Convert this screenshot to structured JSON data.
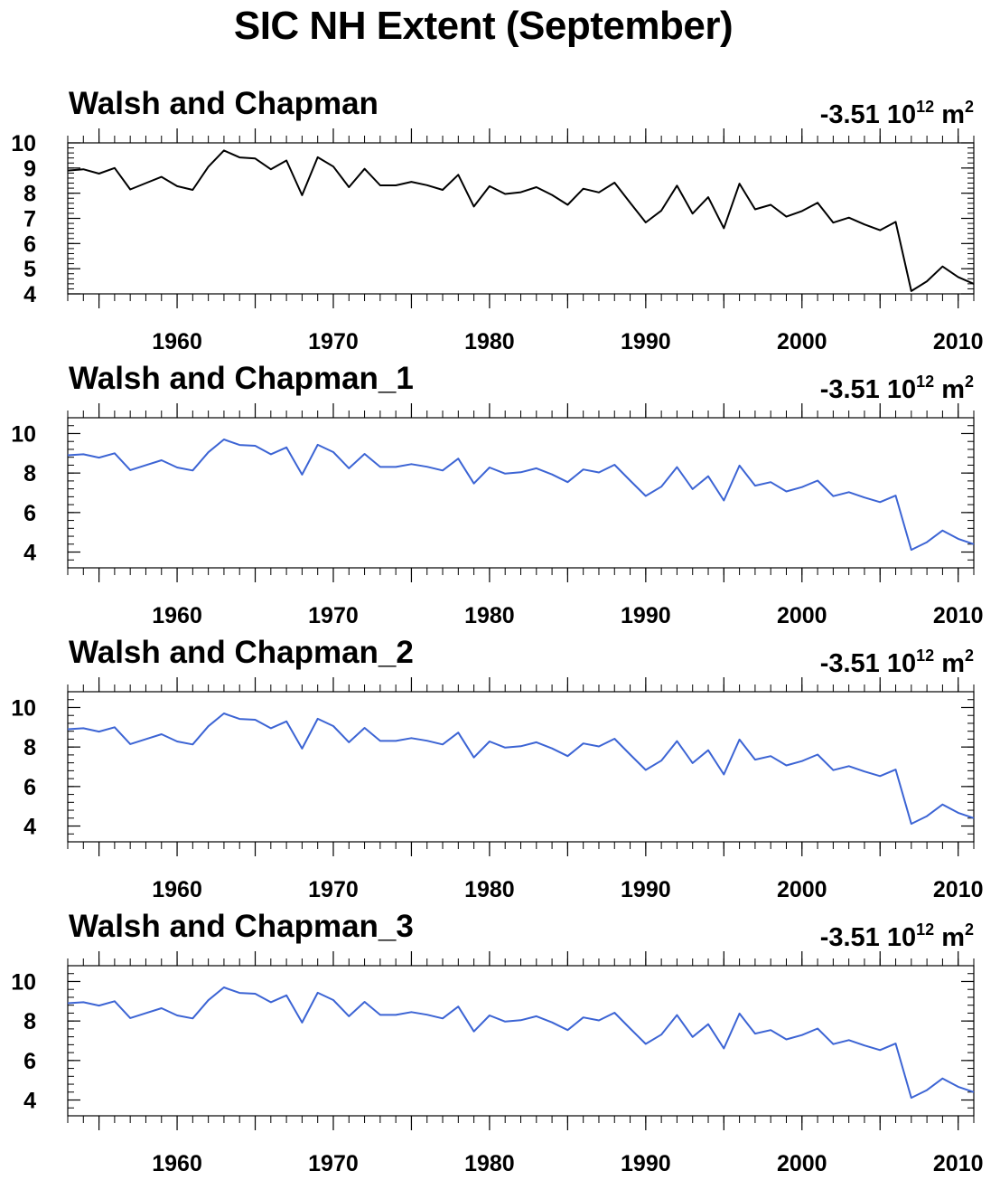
{
  "title": "SIC NH Extent (September)",
  "chart_data": [
    {
      "type": "line",
      "title": "Walsh and Chapman",
      "stat_value": "-3.51",
      "stat_unit_base": "10",
      "stat_unit_exp": "12",
      "stat_unit_rest": "m",
      "stat_unit_rest_exp": "2",
      "line_color": "#000000",
      "xlim": [
        1953,
        2011
      ],
      "ylim": [
        4,
        10
      ],
      "yticks": [
        4,
        5,
        6,
        7,
        8,
        9,
        10
      ],
      "xticks": [
        1960,
        1970,
        1980,
        1990,
        2000,
        2010
      ],
      "x": [
        1953,
        1954,
        1955,
        1956,
        1957,
        1958,
        1959,
        1960,
        1961,
        1962,
        1963,
        1964,
        1965,
        1966,
        1967,
        1968,
        1969,
        1970,
        1971,
        1972,
        1973,
        1974,
        1975,
        1976,
        1977,
        1978,
        1979,
        1980,
        1981,
        1982,
        1983,
        1984,
        1985,
        1986,
        1987,
        1988,
        1989,
        1990,
        1991,
        1992,
        1993,
        1994,
        1995,
        1996,
        1997,
        1998,
        1999,
        2000,
        2001,
        2002,
        2003,
        2004,
        2005,
        2006,
        2007,
        2008,
        2009,
        2010,
        2011
      ],
      "y": [
        8.9,
        8.95,
        8.78,
        9.0,
        8.15,
        8.4,
        8.65,
        8.28,
        8.13,
        9.05,
        9.7,
        9.42,
        9.38,
        8.95,
        9.3,
        7.92,
        9.43,
        9.06,
        8.24,
        8.97,
        8.31,
        8.31,
        8.45,
        8.32,
        8.13,
        8.73,
        7.47,
        8.28,
        7.97,
        8.04,
        8.24,
        7.93,
        7.54,
        8.18,
        8.03,
        8.42,
        7.62,
        6.84,
        7.31,
        8.3,
        7.19,
        7.84,
        6.61,
        8.38,
        7.36,
        7.54,
        7.07,
        7.29,
        7.62,
        6.83,
        7.03,
        6.76,
        6.53,
        6.86,
        4.11,
        4.5,
        5.09,
        4.67,
        4.4
      ]
    },
    {
      "type": "line",
      "title": "Walsh and Chapman_1",
      "stat_value": "-3.51",
      "stat_unit_base": "10",
      "stat_unit_exp": "12",
      "stat_unit_rest": "m",
      "stat_unit_rest_exp": "2",
      "line_color": "#3c64d4",
      "xlim": [
        1953,
        2011
      ],
      "ylim": [
        3.2,
        10.8
      ],
      "yticks": [
        4,
        6,
        8,
        10
      ],
      "xticks": [
        1960,
        1970,
        1980,
        1990,
        2000,
        2010
      ],
      "x": [
        1953,
        1954,
        1955,
        1956,
        1957,
        1958,
        1959,
        1960,
        1961,
        1962,
        1963,
        1964,
        1965,
        1966,
        1967,
        1968,
        1969,
        1970,
        1971,
        1972,
        1973,
        1974,
        1975,
        1976,
        1977,
        1978,
        1979,
        1980,
        1981,
        1982,
        1983,
        1984,
        1985,
        1986,
        1987,
        1988,
        1989,
        1990,
        1991,
        1992,
        1993,
        1994,
        1995,
        1996,
        1997,
        1998,
        1999,
        2000,
        2001,
        2002,
        2003,
        2004,
        2005,
        2006,
        2007,
        2008,
        2009,
        2010,
        2011
      ],
      "y": [
        8.9,
        8.95,
        8.78,
        9.0,
        8.15,
        8.4,
        8.65,
        8.28,
        8.13,
        9.05,
        9.7,
        9.42,
        9.38,
        8.95,
        9.3,
        7.92,
        9.43,
        9.06,
        8.24,
        8.97,
        8.31,
        8.31,
        8.45,
        8.32,
        8.13,
        8.73,
        7.47,
        8.28,
        7.97,
        8.04,
        8.24,
        7.93,
        7.54,
        8.18,
        8.03,
        8.42,
        7.62,
        6.84,
        7.31,
        8.3,
        7.19,
        7.84,
        6.61,
        8.38,
        7.36,
        7.54,
        7.07,
        7.29,
        7.62,
        6.83,
        7.03,
        6.76,
        6.53,
        6.86,
        4.11,
        4.5,
        5.09,
        4.67,
        4.4
      ]
    },
    {
      "type": "line",
      "title": "Walsh and Chapman_2",
      "stat_value": "-3.51",
      "stat_unit_base": "10",
      "stat_unit_exp": "12",
      "stat_unit_rest": "m",
      "stat_unit_rest_exp": "2",
      "line_color": "#3c64d4",
      "xlim": [
        1953,
        2011
      ],
      "ylim": [
        3.2,
        10.8
      ],
      "yticks": [
        4,
        6,
        8,
        10
      ],
      "xticks": [
        1960,
        1970,
        1980,
        1990,
        2000,
        2010
      ],
      "x": [
        1953,
        1954,
        1955,
        1956,
        1957,
        1958,
        1959,
        1960,
        1961,
        1962,
        1963,
        1964,
        1965,
        1966,
        1967,
        1968,
        1969,
        1970,
        1971,
        1972,
        1973,
        1974,
        1975,
        1976,
        1977,
        1978,
        1979,
        1980,
        1981,
        1982,
        1983,
        1984,
        1985,
        1986,
        1987,
        1988,
        1989,
        1990,
        1991,
        1992,
        1993,
        1994,
        1995,
        1996,
        1997,
        1998,
        1999,
        2000,
        2001,
        2002,
        2003,
        2004,
        2005,
        2006,
        2007,
        2008,
        2009,
        2010,
        2011
      ],
      "y": [
        8.9,
        8.95,
        8.78,
        9.0,
        8.15,
        8.4,
        8.65,
        8.28,
        8.13,
        9.05,
        9.7,
        9.42,
        9.38,
        8.95,
        9.3,
        7.92,
        9.43,
        9.06,
        8.24,
        8.97,
        8.31,
        8.31,
        8.45,
        8.32,
        8.13,
        8.73,
        7.47,
        8.28,
        7.97,
        8.04,
        8.24,
        7.93,
        7.54,
        8.18,
        8.03,
        8.42,
        7.62,
        6.84,
        7.31,
        8.3,
        7.19,
        7.84,
        6.61,
        8.38,
        7.36,
        7.54,
        7.07,
        7.29,
        7.62,
        6.83,
        7.03,
        6.76,
        6.53,
        6.86,
        4.11,
        4.5,
        5.09,
        4.67,
        4.4
      ]
    },
    {
      "type": "line",
      "title": "Walsh and Chapman_3",
      "stat_value": "-3.51",
      "stat_unit_base": "10",
      "stat_unit_exp": "12",
      "stat_unit_rest": "m",
      "stat_unit_rest_exp": "2",
      "line_color": "#3c64d4",
      "xlim": [
        1953,
        2011
      ],
      "ylim": [
        3.2,
        10.8
      ],
      "yticks": [
        4,
        6,
        8,
        10
      ],
      "xticks": [
        1960,
        1970,
        1980,
        1990,
        2000,
        2010
      ],
      "x": [
        1953,
        1954,
        1955,
        1956,
        1957,
        1958,
        1959,
        1960,
        1961,
        1962,
        1963,
        1964,
        1965,
        1966,
        1967,
        1968,
        1969,
        1970,
        1971,
        1972,
        1973,
        1974,
        1975,
        1976,
        1977,
        1978,
        1979,
        1980,
        1981,
        1982,
        1983,
        1984,
        1985,
        1986,
        1987,
        1988,
        1989,
        1990,
        1991,
        1992,
        1993,
        1994,
        1995,
        1996,
        1997,
        1998,
        1999,
        2000,
        2001,
        2002,
        2003,
        2004,
        2005,
        2006,
        2007,
        2008,
        2009,
        2010,
        2011
      ],
      "y": [
        8.9,
        8.95,
        8.78,
        9.0,
        8.15,
        8.4,
        8.65,
        8.28,
        8.13,
        9.05,
        9.7,
        9.42,
        9.38,
        8.95,
        9.3,
        7.92,
        9.43,
        9.06,
        8.24,
        8.97,
        8.31,
        8.31,
        8.45,
        8.32,
        8.13,
        8.73,
        7.47,
        8.28,
        7.97,
        8.04,
        8.24,
        7.93,
        7.54,
        8.18,
        8.03,
        8.42,
        7.62,
        6.84,
        7.31,
        8.3,
        7.19,
        7.84,
        6.61,
        8.38,
        7.36,
        7.54,
        7.07,
        7.29,
        7.62,
        6.83,
        7.03,
        6.76,
        6.53,
        6.86,
        4.11,
        4.5,
        5.09,
        4.67,
        4.4
      ]
    }
  ]
}
